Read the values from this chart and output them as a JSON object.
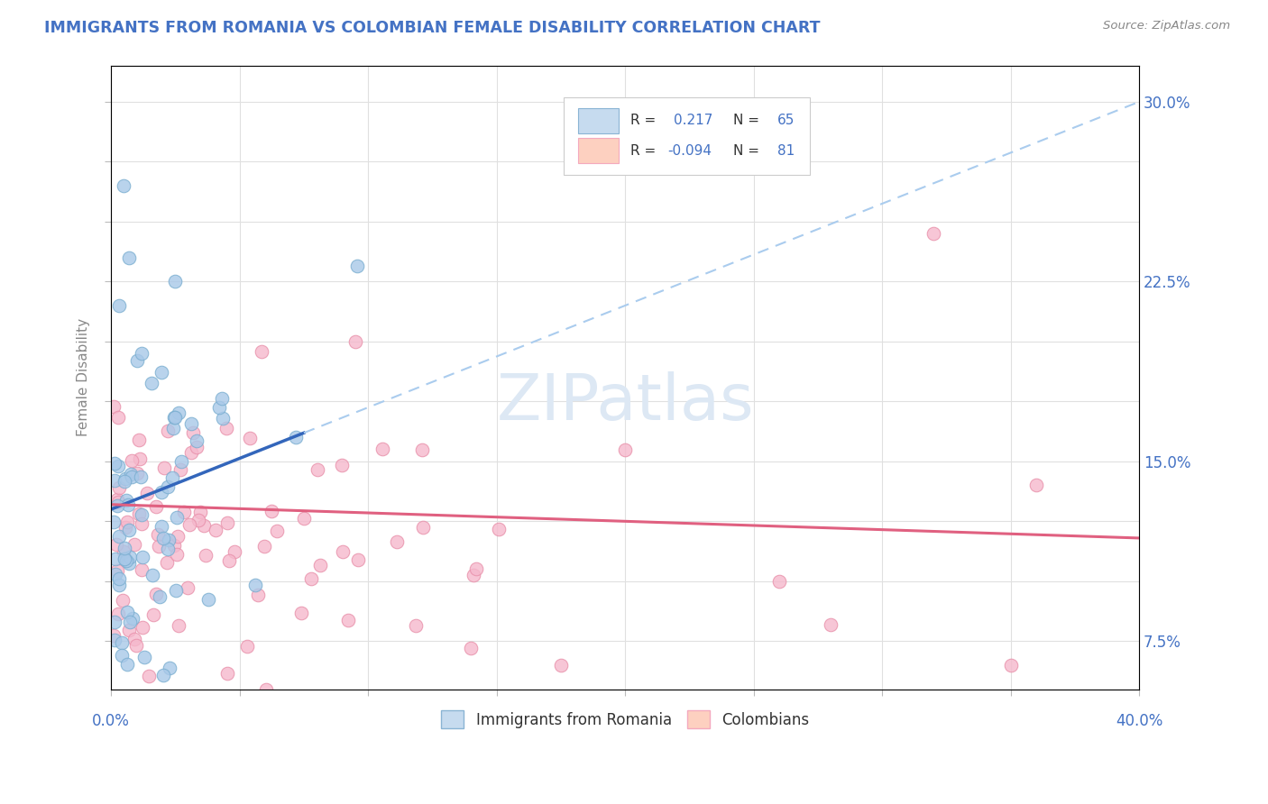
{
  "title": "IMMIGRANTS FROM ROMANIA VS COLOMBIAN FEMALE DISABILITY CORRELATION CHART",
  "source": "Source: ZipAtlas.com",
  "ylabel": "Female Disability",
  "xlim": [
    0.0,
    0.4
  ],
  "ylim": [
    0.055,
    0.315
  ],
  "ytick_vals": [
    0.075,
    0.1,
    0.125,
    0.15,
    0.175,
    0.2,
    0.225,
    0.25,
    0.275,
    0.3
  ],
  "ytick_labels": [
    "7.5%",
    "",
    "",
    "15.0%",
    "",
    "",
    "22.5%",
    "",
    "",
    "30.0%"
  ],
  "xticks": [
    0.0,
    0.05,
    0.1,
    0.15,
    0.2,
    0.25,
    0.3,
    0.35,
    0.4
  ],
  "blue_dot_color": "#a8c8e8",
  "blue_dot_edge": "#7aaed0",
  "pink_dot_color": "#f5b8cc",
  "pink_dot_edge": "#e890aa",
  "blue_line_color": "#3366bb",
  "pink_line_color": "#e06080",
  "dashed_color": "#aaccee",
  "title_color": "#4472c4",
  "right_tick_color": "#4472c4",
  "source_color": "#888888",
  "ylabel_color": "#888888",
  "grid_color": "#e0e0e0",
  "watermark_color": "#dde8f4",
  "legend_blue_face": "#c6dbef",
  "legend_blue_edge": "#8ab4d4",
  "legend_pink_face": "#fdd0c0",
  "legend_pink_edge": "#f4a9be",
  "background": "#ffffff",
  "romania_seed": 12,
  "colombia_seed": 34
}
